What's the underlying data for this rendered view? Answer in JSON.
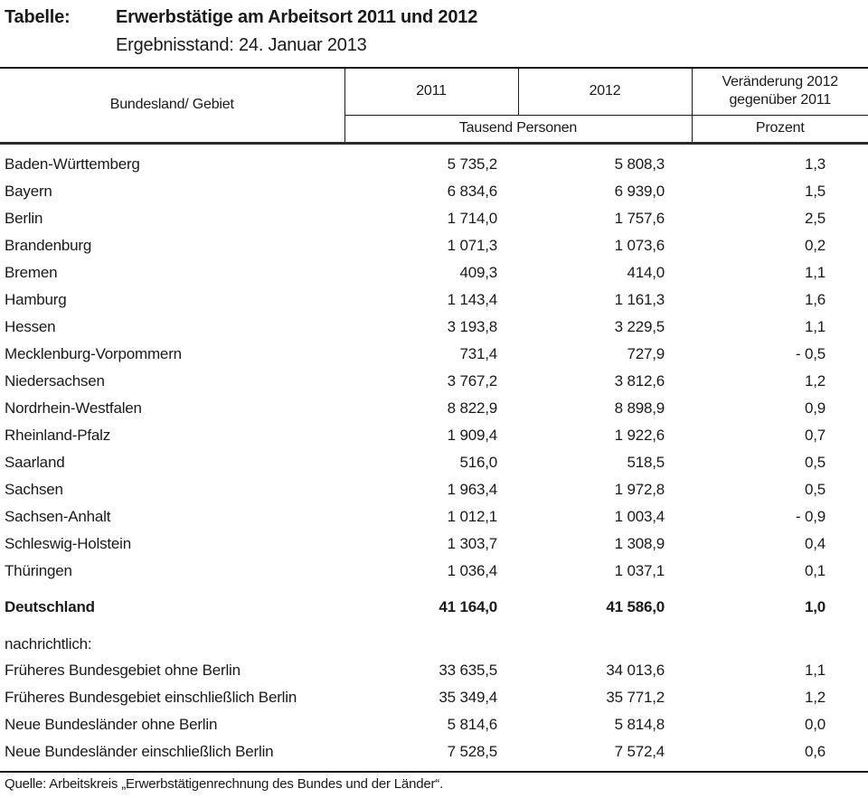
{
  "title": {
    "prefix": "Tabelle:",
    "main": "Erwerbstätige am Arbeitsort 2011 und 2012",
    "subtitle": "Ergebnisstand: 24. Januar 2013"
  },
  "table": {
    "header": {
      "col_region": "Bundesland/ Gebiet",
      "col_2011": "2011",
      "col_2012": "2012",
      "col_change_line1": "Veränderung 2012",
      "col_change_line2": "gegenüber 2011",
      "unit_persons": "Tausend Personen",
      "unit_percent": "Prozent"
    },
    "rows": [
      {
        "name": "Baden-Württemberg",
        "v2011": "5 735,2",
        "v2012": "5 808,3",
        "change": "1,3"
      },
      {
        "name": "Bayern",
        "v2011": "6 834,6",
        "v2012": "6 939,0",
        "change": "1,5"
      },
      {
        "name": "Berlin",
        "v2011": "1 714,0",
        "v2012": "1 757,6",
        "change": "2,5"
      },
      {
        "name": "Brandenburg",
        "v2011": "1 071,3",
        "v2012": "1 073,6",
        "change": "0,2"
      },
      {
        "name": "Bremen",
        "v2011": "409,3",
        "v2012": "414,0",
        "change": "1,1"
      },
      {
        "name": "Hamburg",
        "v2011": "1 143,4",
        "v2012": "1 161,3",
        "change": "1,6"
      },
      {
        "name": "Hessen",
        "v2011": "3 193,8",
        "v2012": "3 229,5",
        "change": "1,1"
      },
      {
        "name": "Mecklenburg-Vorpommern",
        "v2011": "731,4",
        "v2012": "727,9",
        "change": "- 0,5"
      },
      {
        "name": "Niedersachsen",
        "v2011": "3 767,2",
        "v2012": "3 812,6",
        "change": "1,2"
      },
      {
        "name": "Nordrhein-Westfalen",
        "v2011": "8 822,9",
        "v2012": "8 898,9",
        "change": "0,9"
      },
      {
        "name": "Rheinland-Pfalz",
        "v2011": "1 909,4",
        "v2012": "1 922,6",
        "change": "0,7"
      },
      {
        "name": "Saarland",
        "v2011": "516,0",
        "v2012": "518,5",
        "change": "0,5"
      },
      {
        "name": "Sachsen",
        "v2011": "1 963,4",
        "v2012": "1 972,8",
        "change": "0,5"
      },
      {
        "name": "Sachsen-Anhalt",
        "v2011": "1 012,1",
        "v2012": "1 003,4",
        "change": "- 0,9"
      },
      {
        "name": "Schleswig-Holstein",
        "v2011": "1 303,7",
        "v2012": "1 308,9",
        "change": "0,4"
      },
      {
        "name": "Thüringen",
        "v2011": "1 036,4",
        "v2012": "1 037,1",
        "change": "0,1"
      }
    ],
    "total": {
      "name": "Deutschland",
      "v2011": "41 164,0",
      "v2012": "41 586,0",
      "change": "1,0"
    },
    "note_label": "nachrichtlich:",
    "note_rows": [
      {
        "name": "Früheres Bundesgebiet ohne Berlin",
        "v2011": "33 635,5",
        "v2012": "34 013,6",
        "change": "1,1"
      },
      {
        "name": "Früheres Bundesgebiet einschließlich Berlin",
        "v2011": "35 349,4",
        "v2012": "35 771,2",
        "change": "1,2"
      },
      {
        "name": "Neue Bundesländer ohne Berlin",
        "v2011": "5 814,6",
        "v2012": "5 814,8",
        "change": "0,0"
      },
      {
        "name": "Neue Bundesländer einschließlich Berlin",
        "v2011": "7 528,5",
        "v2012": "7 572,4",
        "change": "0,6"
      }
    ],
    "source": "Quelle: Arbeitskreis „Erwerbstätigenrechnung des Bundes und der Länder“."
  }
}
